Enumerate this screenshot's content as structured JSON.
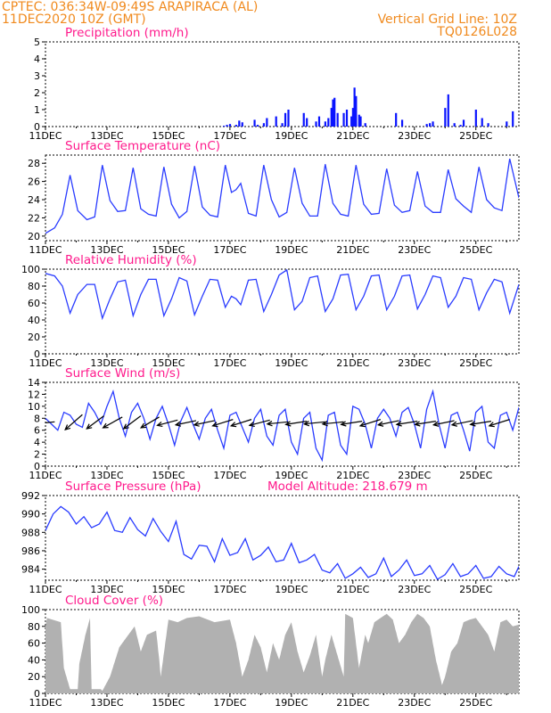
{
  "header": {
    "line1": "CPTEC:   036:34W-09:49S   ARAPIRACA (AL)",
    "line2": "11DEC2020 10Z (GMT)",
    "right1": "Vertical Grid Line: 10Z",
    "right2": "TQ0126L028"
  },
  "x_axis": {
    "range_days": [
      0,
      15.4
    ],
    "tick_days": [
      0,
      2,
      4,
      6,
      8,
      10,
      12,
      14
    ],
    "tick_labels": [
      "11DEC",
      "13DEC",
      "15DEC",
      "17DEC",
      "19DEC",
      "21DEC",
      "23DEC",
      "25DEC"
    ]
  },
  "chart_data": [
    {
      "id": "precip",
      "type": "bar",
      "title": "Precipitation (mm/h)",
      "ylim": [
        0,
        5
      ],
      "yticks": [
        0,
        1,
        2,
        3,
        4,
        5
      ],
      "color": "#0a14ff",
      "x_days": [
        5.8,
        5.9,
        6.0,
        6.2,
        6.3,
        6.4,
        6.8,
        6.9,
        7.1,
        7.2,
        7.5,
        7.7,
        7.8,
        7.9,
        8.4,
        8.5,
        8.8,
        8.9,
        9.1,
        9.2,
        9.3,
        9.35,
        9.4,
        9.5,
        9.7,
        9.8,
        9.95,
        10.0,
        10.05,
        10.1,
        10.2,
        10.25,
        10.4,
        11.4,
        11.6,
        12.4,
        12.5,
        12.6,
        13.0,
        13.1,
        13.3,
        13.5,
        13.6,
        14.0,
        14.2,
        14.4,
        15.0,
        15.2
      ],
      "values": [
        0.05,
        0.1,
        0.15,
        0.1,
        0.35,
        0.25,
        0.4,
        0.1,
        0.2,
        0.5,
        0.6,
        0.2,
        0.8,
        1.0,
        0.8,
        0.5,
        0.3,
        0.6,
        0.3,
        0.5,
        1.1,
        1.6,
        1.7,
        0.8,
        0.8,
        1.0,
        0.6,
        1.1,
        2.3,
        1.8,
        0.7,
        0.6,
        0.2,
        0.8,
        0.4,
        0.15,
        0.2,
        0.3,
        1.1,
        1.9,
        0.2,
        0.1,
        0.4,
        1.0,
        0.5,
        0.2,
        0.3,
        0.9
      ]
    },
    {
      "id": "temp",
      "type": "line",
      "title": "Surface Temperature (nC)",
      "ylim": [
        19.5,
        28.9
      ],
      "yticks": [
        20,
        22,
        24,
        26,
        28
      ],
      "color": "#2a3cff",
      "x": [
        0,
        0.3,
        0.55,
        0.8,
        1.05,
        1.35,
        1.6,
        1.85,
        2.1,
        2.35,
        2.6,
        2.85,
        3.1,
        3.35,
        3.6,
        3.85,
        4.1,
        4.35,
        4.6,
        4.85,
        5.1,
        5.35,
        5.6,
        5.85,
        6.05,
        6.2,
        6.35,
        6.6,
        6.85,
        7.1,
        7.35,
        7.6,
        7.85,
        8.1,
        8.35,
        8.6,
        8.85,
        9.1,
        9.35,
        9.6,
        9.85,
        10.1,
        10.35,
        10.6,
        10.85,
        11.1,
        11.35,
        11.6,
        11.85,
        12.1,
        12.35,
        12.6,
        12.85,
        13.1,
        13.35,
        13.6,
        13.85,
        14.1,
        14.35,
        14.6,
        14.85,
        15.1,
        15.4
      ],
      "y": [
        20.3,
        20.9,
        22.4,
        26.7,
        22.8,
        21.8,
        22.1,
        27.8,
        23.9,
        22.7,
        22.8,
        27.5,
        23.0,
        22.4,
        22.2,
        27.6,
        23.5,
        22.0,
        22.7,
        27.7,
        23.2,
        22.3,
        22.1,
        27.8,
        24.8,
        25.1,
        25.8,
        22.5,
        22.2,
        27.8,
        24.0,
        22.1,
        22.6,
        27.5,
        23.6,
        22.2,
        22.2,
        27.9,
        23.6,
        22.4,
        22.2,
        27.8,
        23.5,
        22.4,
        22.5,
        27.4,
        23.4,
        22.6,
        22.8,
        27.1,
        23.3,
        22.6,
        22.6,
        27.3,
        24.1,
        23.3,
        22.6,
        27.6,
        24.0,
        23.1,
        22.8,
        28.5,
        24.2
      ]
    },
    {
      "id": "rh",
      "type": "line",
      "title": "Relative Humidity (%)",
      "ylim": [
        0,
        100
      ],
      "yticks": [
        0,
        20,
        40,
        60,
        80,
        100
      ],
      "color": "#2a3cff",
      "x": [
        0,
        0.3,
        0.55,
        0.8,
        1.05,
        1.35,
        1.6,
        1.85,
        2.1,
        2.35,
        2.6,
        2.85,
        3.1,
        3.35,
        3.6,
        3.85,
        4.1,
        4.35,
        4.6,
        4.85,
        5.1,
        5.35,
        5.6,
        5.85,
        6.05,
        6.2,
        6.35,
        6.6,
        6.85,
        7.1,
        7.35,
        7.6,
        7.85,
        8.1,
        8.35,
        8.6,
        8.85,
        9.1,
        9.35,
        9.6,
        9.85,
        10.1,
        10.35,
        10.6,
        10.85,
        11.1,
        11.35,
        11.6,
        11.85,
        12.1,
        12.35,
        12.6,
        12.85,
        13.1,
        13.35,
        13.6,
        13.85,
        14.1,
        14.35,
        14.6,
        14.85,
        15.1,
        15.4
      ],
      "y": [
        95,
        92,
        80,
        48,
        70,
        82,
        82,
        42,
        65,
        85,
        87,
        45,
        70,
        88,
        88,
        45,
        65,
        90,
        86,
        46,
        68,
        88,
        87,
        55,
        68,
        65,
        58,
        87,
        88,
        50,
        70,
        93,
        99,
        52,
        62,
        90,
        92,
        50,
        65,
        93,
        94,
        52,
        68,
        92,
        93,
        52,
        68,
        92,
        93,
        53,
        70,
        92,
        90,
        55,
        68,
        90,
        88,
        52,
        72,
        88,
        85,
        48,
        82
      ]
    },
    {
      "id": "wind",
      "type": "line",
      "title": "Surface Wind (m/s)",
      "ylim": [
        0,
        14
      ],
      "yticks": [
        0,
        2,
        4,
        6,
        8,
        10,
        12,
        14
      ],
      "color": "#2a3cff",
      "x": [
        0,
        0.2,
        0.4,
        0.6,
        0.8,
        1.0,
        1.2,
        1.4,
        1.6,
        1.8,
        2.0,
        2.2,
        2.4,
        2.6,
        2.8,
        3.0,
        3.2,
        3.4,
        3.6,
        3.8,
        4.0,
        4.2,
        4.4,
        4.6,
        4.8,
        5.0,
        5.2,
        5.4,
        5.6,
        5.8,
        6.0,
        6.2,
        6.4,
        6.6,
        6.8,
        7.0,
        7.2,
        7.4,
        7.6,
        7.8,
        8.0,
        8.2,
        8.4,
        8.6,
        8.8,
        9.0,
        9.2,
        9.4,
        9.6,
        9.8,
        10.0,
        10.2,
        10.4,
        10.6,
        10.8,
        11.0,
        11.2,
        11.4,
        11.6,
        11.8,
        12.0,
        12.2,
        12.4,
        12.6,
        12.8,
        13.0,
        13.2,
        13.4,
        13.6,
        13.8,
        14.0,
        14.2,
        14.4,
        14.6,
        14.8,
        15.0,
        15.2,
        15.4
      ],
      "y": [
        8,
        7,
        6,
        9,
        8.5,
        7,
        6.5,
        10.5,
        9,
        7,
        10,
        12.5,
        8,
        5,
        9,
        10.5,
        8,
        4.5,
        8,
        10,
        7,
        3.5,
        7.5,
        9.8,
        7,
        4.5,
        8,
        9.5,
        6,
        3,
        8.5,
        9,
        6.5,
        4,
        8,
        9.5,
        5,
        3.5,
        8.5,
        9.5,
        4,
        2,
        8,
        9,
        3,
        1,
        8.5,
        9,
        3.5,
        2,
        10,
        9.5,
        7,
        3,
        8,
        9.5,
        8,
        5,
        9,
        9.8,
        7,
        3,
        9.5,
        12.5,
        7,
        3,
        8.5,
        9,
        6,
        2.5,
        9,
        10,
        4,
        3,
        8.5,
        9,
        6,
        9.8
      ],
      "arrows": [
        {
          "x": 0.3,
          "u": -1,
          "v": -0.1
        },
        {
          "x": 1.2,
          "u": -0.8,
          "v": -0.7
        },
        {
          "x": 1.9,
          "u": -0.8,
          "v": -0.6
        },
        {
          "x": 2.5,
          "u": -0.9,
          "v": -0.5
        },
        {
          "x": 3.1,
          "u": -0.8,
          "v": -0.6
        },
        {
          "x": 3.7,
          "u": -0.85,
          "v": -0.5
        },
        {
          "x": 4.3,
          "u": -0.95,
          "v": -0.25
        },
        {
          "x": 4.9,
          "u": -0.95,
          "v": -0.2
        },
        {
          "x": 5.5,
          "u": -0.95,
          "v": -0.2
        },
        {
          "x": 6.1,
          "u": -0.95,
          "v": -0.3
        },
        {
          "x": 6.7,
          "u": -0.95,
          "v": -0.3
        },
        {
          "x": 7.3,
          "u": -0.95,
          "v": -0.25
        },
        {
          "x": 7.9,
          "u": -0.98,
          "v": -0.1
        },
        {
          "x": 8.5,
          "u": -0.98,
          "v": -0.15
        },
        {
          "x": 9.1,
          "u": -0.98,
          "v": -0.1
        },
        {
          "x": 9.7,
          "u": -0.98,
          "v": -0.1
        },
        {
          "x": 10.3,
          "u": -0.98,
          "v": -0.15
        },
        {
          "x": 10.9,
          "u": -0.95,
          "v": -0.3
        },
        {
          "x": 11.5,
          "u": -0.97,
          "v": -0.2
        },
        {
          "x": 12.1,
          "u": -0.97,
          "v": -0.15
        },
        {
          "x": 12.7,
          "u": -0.97,
          "v": -0.15
        },
        {
          "x": 13.3,
          "u": -0.97,
          "v": -0.2
        },
        {
          "x": 13.9,
          "u": -0.97,
          "v": -0.2
        },
        {
          "x": 14.5,
          "u": -0.97,
          "v": -0.15
        },
        {
          "x": 15.1,
          "u": -0.95,
          "v": -0.3
        }
      ]
    },
    {
      "id": "pressure",
      "type": "line",
      "title": "Surface Pressure (hPa)",
      "annotation": "Model Altitude: 218.679  m",
      "ylim": [
        982.8,
        992
      ],
      "yticks": [
        984,
        986,
        988,
        990,
        992
      ],
      "color": "#2a3cff",
      "x": [
        0,
        0.25,
        0.5,
        0.75,
        1.0,
        1.25,
        1.5,
        1.75,
        2.0,
        2.25,
        2.5,
        2.75,
        3.0,
        3.25,
        3.5,
        3.75,
        4.0,
        4.25,
        4.5,
        4.75,
        5.0,
        5.25,
        5.5,
        5.75,
        6.0,
        6.25,
        6.5,
        6.75,
        7.0,
        7.25,
        7.5,
        7.75,
        8.0,
        8.25,
        8.5,
        8.75,
        9.0,
        9.25,
        9.5,
        9.75,
        10.0,
        10.25,
        10.5,
        10.75,
        11.0,
        11.25,
        11.5,
        11.75,
        12.0,
        12.25,
        12.5,
        12.75,
        13.0,
        13.25,
        13.5,
        13.75,
        14.0,
        14.25,
        14.5,
        14.75,
        15.0,
        15.25,
        15.4
      ],
      "y": [
        988.2,
        990.0,
        990.8,
        990.2,
        988.9,
        989.7,
        988.5,
        988.9,
        990.2,
        988.2,
        988.0,
        989.6,
        988.3,
        987.6,
        989.5,
        988.1,
        987.0,
        989.2,
        985.6,
        985.1,
        986.6,
        986.5,
        984.8,
        987.3,
        985.5,
        985.8,
        987.3,
        985.0,
        985.5,
        986.4,
        984.8,
        985.0,
        986.8,
        984.7,
        985.0,
        985.6,
        983.9,
        983.6,
        984.6,
        983.0,
        983.5,
        984.2,
        983.1,
        983.5,
        985.2,
        983.2,
        983.9,
        985.0,
        983.3,
        983.5,
        984.4,
        982.9,
        983.4,
        984.6,
        983.2,
        983.5,
        984.4,
        983.0,
        983.2,
        984.3,
        983.5,
        983.2,
        984.3
      ]
    },
    {
      "id": "cloud",
      "type": "area",
      "title": "Cloud Cover (%)",
      "ylim": [
        0,
        100
      ],
      "yticks": [
        0,
        20,
        40,
        60,
        80,
        100
      ],
      "color": "#a8a8a8",
      "x": [
        0,
        0.05,
        0.5,
        0.6,
        0.8,
        1.05,
        1.1,
        1.3,
        1.45,
        1.5,
        1.8,
        1.85,
        2.1,
        2.4,
        2.6,
        2.9,
        3.1,
        3.3,
        3.6,
        3.7,
        3.75,
        4.0,
        4.3,
        4.6,
        5.0,
        5.5,
        6.0,
        6.2,
        6.4,
        6.6,
        6.8,
        7.0,
        7.2,
        7.4,
        7.6,
        7.8,
        8.0,
        8.2,
        8.4,
        8.6,
        8.8,
        9.0,
        9.1,
        9.3,
        9.5,
        9.7,
        9.75,
        10.0,
        10.2,
        10.4,
        10.5,
        10.7,
        10.9,
        11.1,
        11.3,
        11.5,
        11.7,
        11.9,
        12.1,
        12.3,
        12.5,
        12.7,
        12.9,
        13.0,
        13.2,
        13.4,
        13.6,
        13.8,
        14.0,
        14.2,
        14.4,
        14.6,
        14.8,
        15.0,
        15.2,
        15.4
      ],
      "y": [
        80,
        90,
        85,
        30,
        5,
        5,
        35,
        70,
        90,
        5,
        5,
        3,
        20,
        55,
        65,
        80,
        50,
        70,
        75,
        40,
        20,
        88,
        85,
        90,
        92,
        85,
        88,
        60,
        20,
        40,
        70,
        55,
        25,
        60,
        40,
        70,
        85,
        50,
        25,
        45,
        70,
        20,
        40,
        70,
        45,
        20,
        95,
        90,
        30,
        70,
        60,
        85,
        90,
        95,
        88,
        60,
        70,
        85,
        95,
        90,
        80,
        40,
        10,
        20,
        50,
        60,
        85,
        88,
        90,
        80,
        70,
        50,
        85,
        88,
        80,
        82
      ]
    }
  ]
}
